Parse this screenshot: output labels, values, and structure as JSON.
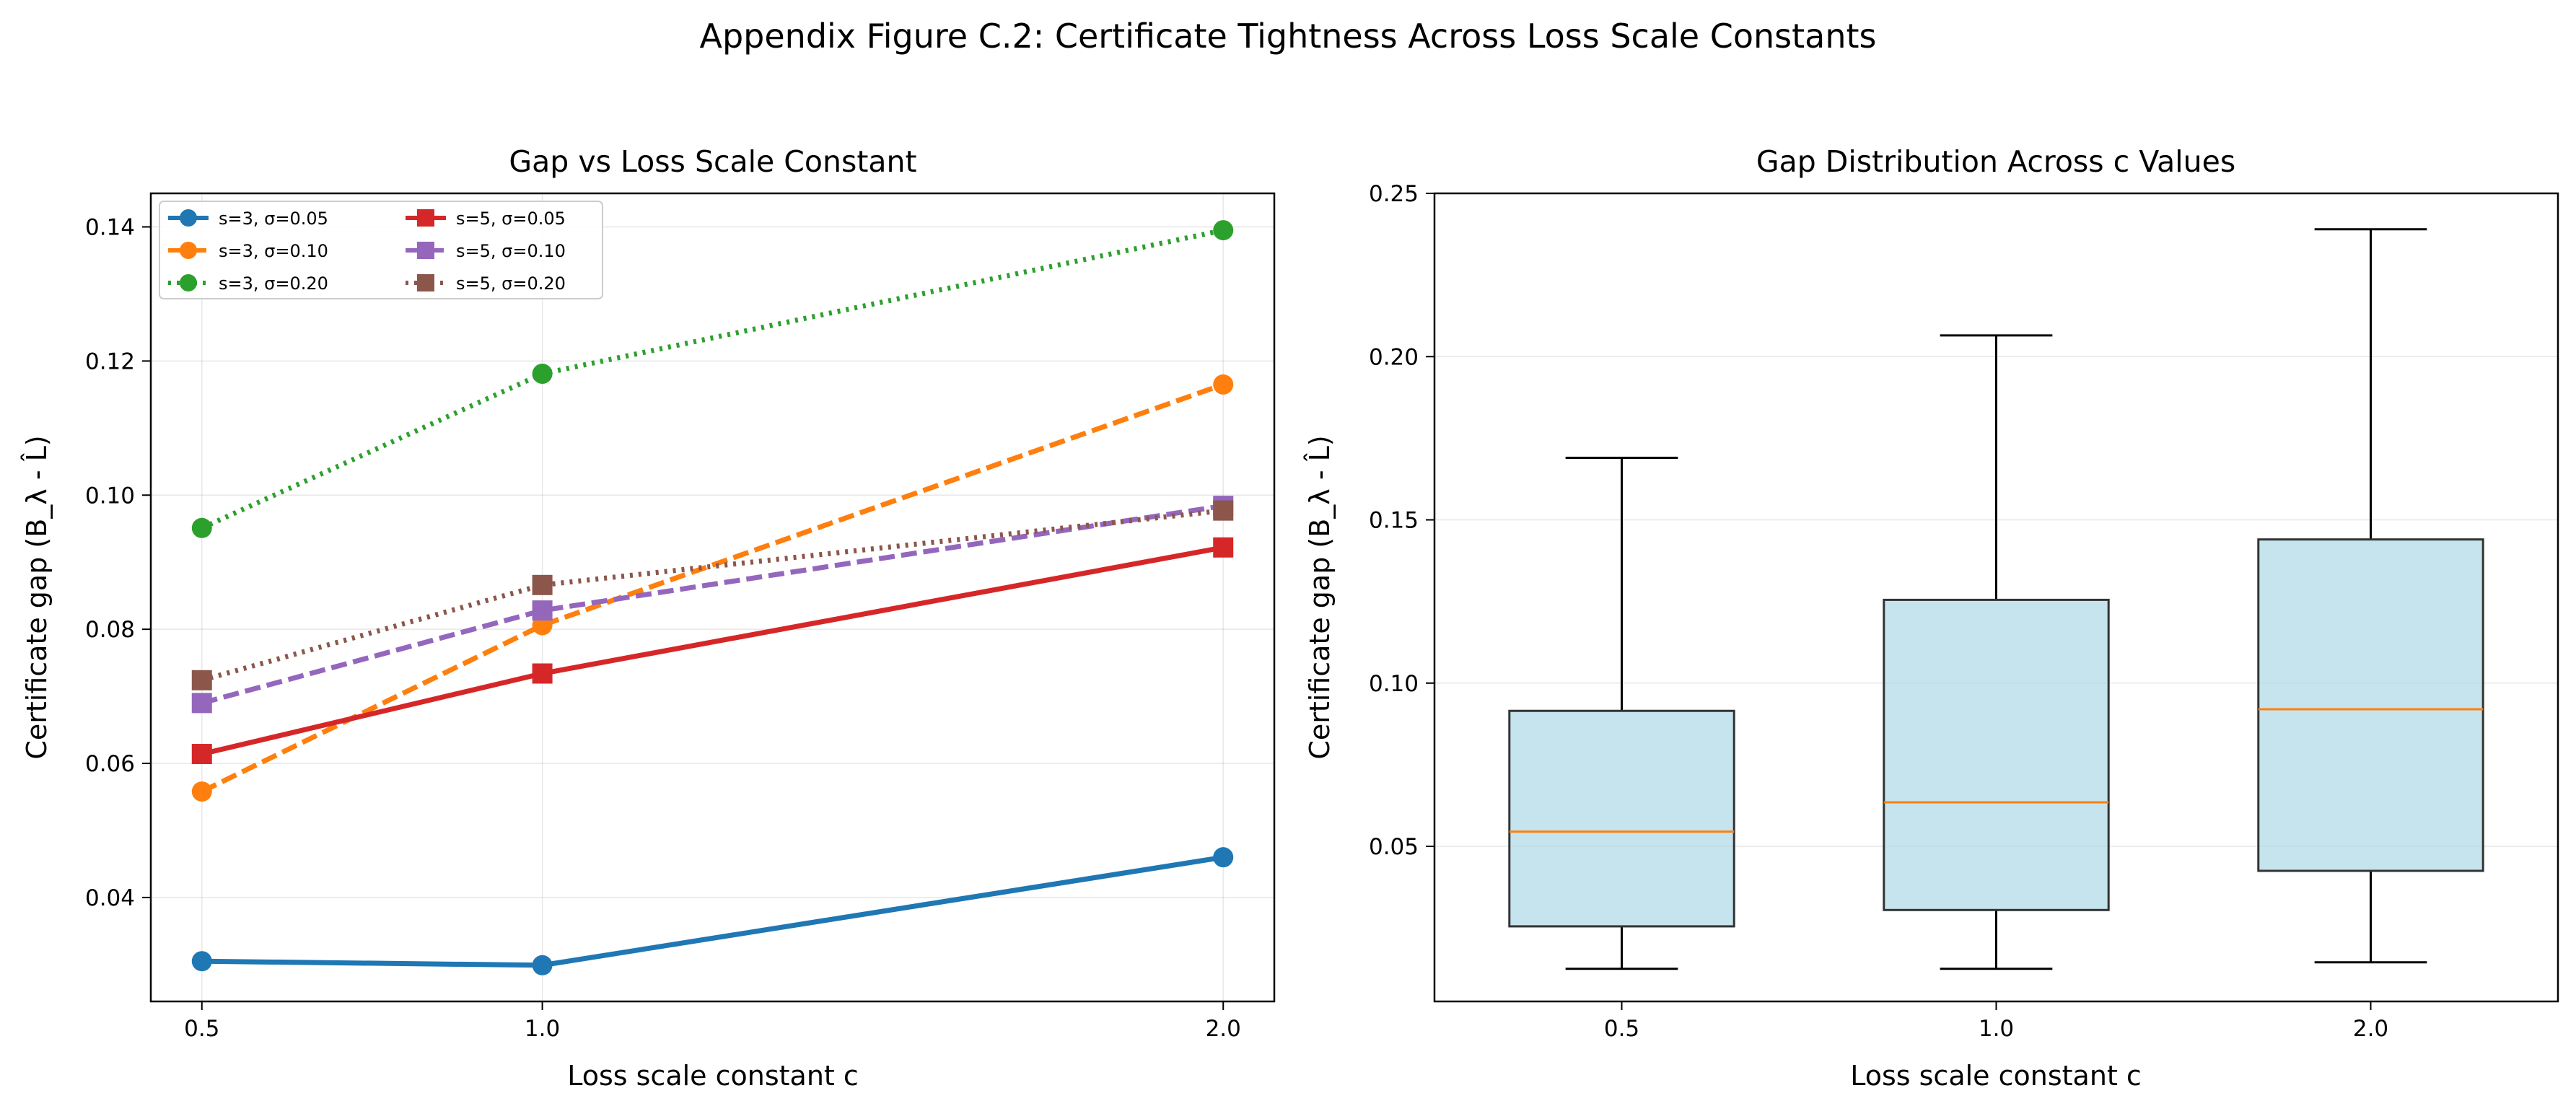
{
  "figure": {
    "suptitle": "Appendix Figure C.2: Certificate Tightness Across Loss Scale Constants"
  },
  "chart_data": [
    {
      "type": "line",
      "title": "Gap vs Loss Scale Constant",
      "xlabel": "Loss scale constant c",
      "ylabel": "Certificate gap (B_λ - L̂)",
      "x": [
        0.5,
        1.0,
        2.0
      ],
      "x_tick_labels": [
        "0.5",
        "1.0",
        "2.0"
      ],
      "xlim": [
        0.425,
        2.075
      ],
      "ylim": [
        0.0245,
        0.145
      ],
      "y_ticks": [
        0.04,
        0.06,
        0.08,
        0.1,
        0.12,
        0.14
      ],
      "y_tick_labels": [
        "0.04",
        "0.06",
        "0.08",
        "0.10",
        "0.12",
        "0.14"
      ],
      "grid": true,
      "legend": {
        "position": "top-left",
        "columns": 2
      },
      "series": [
        {
          "name": "s=3, σ=0.05",
          "values": [
            0.0305,
            0.0299,
            0.046
          ],
          "color": "#1f77b4",
          "marker": "circle",
          "dash": "solid"
        },
        {
          "name": "s=3, σ=0.10",
          "values": [
            0.0558,
            0.0806,
            0.1165
          ],
          "color": "#ff7f0e",
          "marker": "circle",
          "dash": "dashed"
        },
        {
          "name": "s=3, σ=0.20",
          "values": [
            0.0951,
            0.1181,
            0.1395
          ],
          "color": "#2ca02c",
          "marker": "circle",
          "dash": "dotted"
        },
        {
          "name": "s=5, σ=0.05",
          "values": [
            0.0614,
            0.0734,
            0.0922
          ],
          "color": "#d62728",
          "marker": "square",
          "dash": "solid"
        },
        {
          "name": "s=5, σ=0.10",
          "values": [
            0.069,
            0.0828,
            0.0984
          ],
          "color": "#9467bd",
          "marker": "square",
          "dash": "dashed"
        },
        {
          "name": "s=5, σ=0.20",
          "values": [
            0.0724,
            0.0866,
            0.0977
          ],
          "color": "#8c564b",
          "marker": "square",
          "dash": "dotted"
        }
      ]
    },
    {
      "type": "box",
      "title": "Gap Distribution Across c Values",
      "xlabel": "Loss scale constant c",
      "ylabel": "Certificate gap (B_λ - L̂)",
      "categories": [
        "0.5",
        "1.0",
        "2.0"
      ],
      "ylim": [
        0.0025,
        0.25
      ],
      "y_ticks": [
        0.05,
        0.1,
        0.15,
        0.2,
        0.25
      ],
      "y_tick_labels": [
        "0.05",
        "0.10",
        "0.15",
        "0.20",
        "0.25"
      ],
      "grid": true,
      "box_color": "#add8e6",
      "median_color": "#ff7f0e",
      "boxes": [
        {
          "whisker_low": 0.0125,
          "q1": 0.0255,
          "median": 0.0545,
          "q3": 0.0915,
          "whisker_high": 0.169
        },
        {
          "whisker_low": 0.0125,
          "q1": 0.0305,
          "median": 0.0635,
          "q3": 0.1255,
          "whisker_high": 0.2065
        },
        {
          "whisker_low": 0.0145,
          "q1": 0.0425,
          "median": 0.092,
          "q3": 0.144,
          "whisker_high": 0.239
        }
      ]
    }
  ]
}
